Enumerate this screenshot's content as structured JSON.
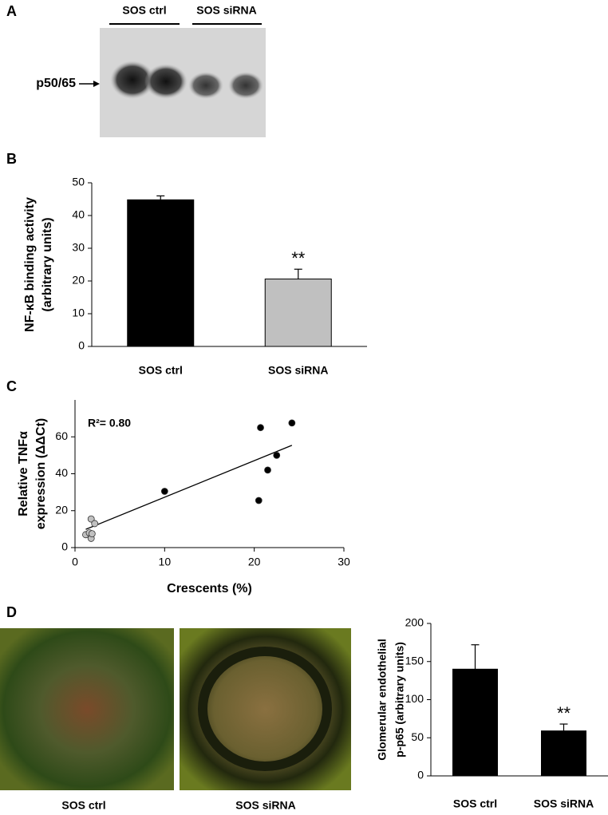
{
  "panel_labels": [
    "A",
    "B",
    "C",
    "D"
  ],
  "blot": {
    "groups": [
      "SOS ctrl",
      "SOS siRNA"
    ],
    "band_label": "p50/65"
  },
  "micrographs": {
    "captions": [
      "SOS ctrl",
      "SOS siRNA"
    ]
  },
  "chart_data": [
    {
      "type": "bar",
      "y_label": [
        "NF-κB binding activity",
        "(arbitrary units)"
      ],
      "categories": [
        "SOS ctrl",
        "SOS siRNA"
      ],
      "values": [
        44.8,
        20.6
      ],
      "errors": [
        1.2,
        3.0
      ],
      "colors": [
        "#000000",
        "#c0c0c0"
      ],
      "significance_labels": [
        null,
        "**"
      ],
      "ylim": [
        0,
        50
      ],
      "yticks": [
        0,
        10,
        20,
        30,
        40,
        50
      ]
    },
    {
      "type": "scatter",
      "x_label": "Crescents (%)",
      "y_label": [
        "Relative TNFα",
        "expression (ΔΔCt)"
      ],
      "annotation": "R²= 0.80",
      "series": [
        {
          "color": "#c0c0c0",
          "x": [
            1.2,
            1.6,
            1.8,
            2.2,
            1.8,
            1.9
          ],
          "values": [
            7,
            8,
            15.5,
            13,
            5,
            7.5
          ]
        },
        {
          "color": "#000000",
          "x": [
            10,
            20.5,
            20.7,
            21.5,
            22.5,
            24.2
          ],
          "values": [
            30.5,
            25.5,
            65,
            42,
            50,
            67.5
          ]
        }
      ],
      "trendline": {
        "slope": 1.98,
        "intercept": 7.5
      },
      "xlim": [
        0,
        30
      ],
      "xticks": [
        0,
        10,
        20,
        30
      ],
      "ylim": [
        0,
        80
      ],
      "yticks": [
        0,
        20,
        40,
        60
      ]
    },
    {
      "type": "bar",
      "y_label": [
        "Glomerular endothelial",
        "p-p65 (arbitrary units)"
      ],
      "categories": [
        "SOS ctrl",
        "SOS siRNA"
      ],
      "values": [
        140,
        59
      ],
      "errors": [
        32,
        9
      ],
      "colors": [
        "#000000",
        "#000000"
      ],
      "significance_labels": [
        null,
        "**"
      ],
      "ylim": [
        0,
        200
      ],
      "yticks": [
        0,
        50,
        100,
        150,
        200
      ]
    }
  ]
}
